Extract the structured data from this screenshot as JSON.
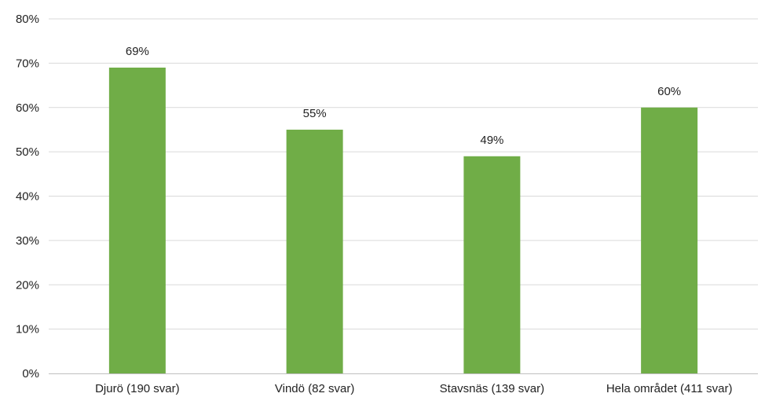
{
  "chart_data": {
    "type": "bar",
    "title": "",
    "xlabel": "",
    "ylabel": "",
    "categories": [
      "Djurö (190 svar)",
      "Vindö (82 svar)",
      "Stavsnäs (139 svar)",
      "Hela området (411 svar)"
    ],
    "values": [
      69,
      55,
      49,
      60
    ],
    "value_labels": [
      "69%",
      "55%",
      "49%",
      "60%"
    ],
    "ylim": [
      0,
      80
    ],
    "yticks": [
      0,
      10,
      20,
      30,
      40,
      50,
      60,
      70,
      80
    ],
    "ytick_labels": [
      "0%",
      "10%",
      "20%",
      "30%",
      "40%",
      "50%",
      "60%",
      "70%",
      "80%"
    ],
    "grid": true,
    "legend": "none",
    "colors": {
      "bar": "#70ad47",
      "grid": "#d9d9d9",
      "axis": "#bfbfbf",
      "text": "#222222"
    }
  }
}
